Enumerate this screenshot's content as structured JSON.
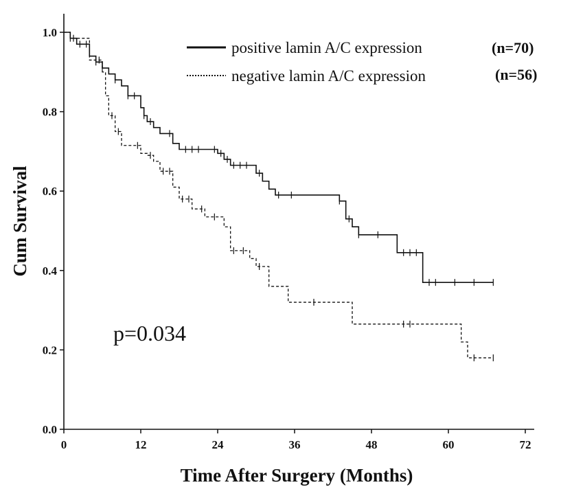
{
  "chart_data": {
    "type": "line",
    "xlabel": "Time After Surgery (Months)",
    "ylabel": "Cum Survival",
    "xlim": [
      0,
      72
    ],
    "ylim": [
      0,
      1.0
    ],
    "xticks": [
      0,
      12,
      24,
      36,
      48,
      60,
      72
    ],
    "yticks": [
      0.0,
      0.2,
      0.4,
      0.6,
      0.8,
      1.0
    ],
    "x_tick_labels": [
      "0",
      "12",
      "24",
      "36",
      "48",
      "60",
      "72"
    ],
    "y_tick_labels": [
      "0.0",
      "0.2",
      "0.4",
      "0.6",
      "0.8",
      "1.0"
    ],
    "grid": false,
    "legend_position": "top-right",
    "annotation": "p=0.034",
    "series": [
      {
        "name": "positive lamin A/C expression",
        "n_label": "(n=70)",
        "line_style": "solid",
        "steps": [
          [
            0,
            1.0
          ],
          [
            1,
            0.985
          ],
          [
            2,
            0.97
          ],
          [
            4,
            0.94
          ],
          [
            5,
            0.925
          ],
          [
            6,
            0.91
          ],
          [
            7,
            0.895
          ],
          [
            8,
            0.88
          ],
          [
            9,
            0.865
          ],
          [
            10,
            0.84
          ],
          [
            12,
            0.81
          ],
          [
            12.5,
            0.79
          ],
          [
            13,
            0.775
          ],
          [
            14,
            0.76
          ],
          [
            15,
            0.745
          ],
          [
            17,
            0.72
          ],
          [
            18,
            0.705
          ],
          [
            24,
            0.695
          ],
          [
            25,
            0.68
          ],
          [
            26,
            0.665
          ],
          [
            30,
            0.645
          ],
          [
            31,
            0.625
          ],
          [
            32,
            0.605
          ],
          [
            33,
            0.59
          ],
          [
            43,
            0.575
          ],
          [
            44,
            0.53
          ],
          [
            45,
            0.51
          ],
          [
            46,
            0.49
          ],
          [
            52,
            0.445
          ],
          [
            56,
            0.37
          ],
          [
            67,
            0.37
          ]
        ],
        "censored": [
          1,
          2.5,
          3.5,
          5,
          6,
          8,
          10,
          11,
          12.5,
          13.5,
          16.5,
          19,
          20,
          21,
          23.5,
          24.5,
          25.5,
          26.5,
          27.5,
          28.5,
          30.5,
          33.5,
          35.5,
          43,
          44.5,
          46,
          49,
          53,
          54,
          55,
          57,
          58,
          61,
          64,
          67
        ]
      },
      {
        "name": "negative lamin A/C expression",
        "n_label": "(n=56)",
        "line_style": "dashed",
        "steps": [
          [
            0,
            1.0
          ],
          [
            1,
            0.985
          ],
          [
            4,
            0.93
          ],
          [
            6,
            0.9
          ],
          [
            6.5,
            0.84
          ],
          [
            7,
            0.79
          ],
          [
            8,
            0.75
          ],
          [
            9,
            0.715
          ],
          [
            12,
            0.695
          ],
          [
            13,
            0.69
          ],
          [
            14,
            0.675
          ],
          [
            15,
            0.65
          ],
          [
            17,
            0.61
          ],
          [
            18,
            0.58
          ],
          [
            20,
            0.555
          ],
          [
            22,
            0.535
          ],
          [
            25,
            0.51
          ],
          [
            26,
            0.45
          ],
          [
            29,
            0.43
          ],
          [
            30,
            0.41
          ],
          [
            32,
            0.36
          ],
          [
            35,
            0.32
          ],
          [
            45,
            0.265
          ],
          [
            62,
            0.22
          ],
          [
            63,
            0.18
          ],
          [
            67,
            0.18
          ]
        ],
        "censored": [
          1.5,
          5.5,
          7.5,
          8.5,
          11.5,
          13.5,
          15.5,
          16.5,
          18.5,
          19.5,
          21.5,
          23.5,
          26.5,
          28,
          30.5,
          39,
          53,
          54,
          64,
          67
        ]
      }
    ]
  }
}
